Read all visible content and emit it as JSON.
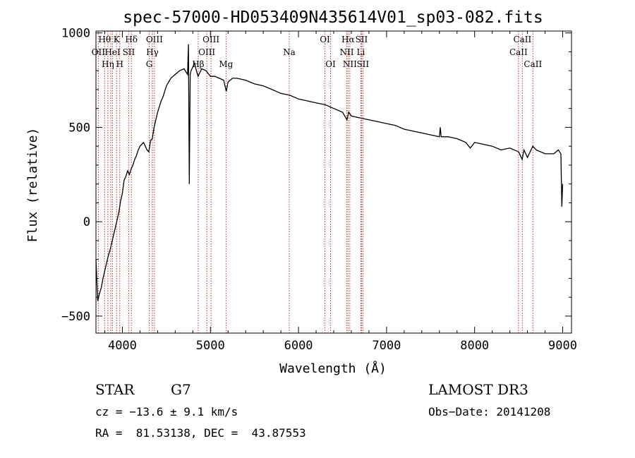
{
  "chart_data": {
    "type": "line",
    "title": "spec-57000-HD053409N435614V01_sp03-082.fits",
    "xlabel": "Wavelength (Å)",
    "ylabel": "Flux (relative)",
    "xlim": [
      3700,
      9100
    ],
    "ylim": [
      -590,
      1010
    ],
    "xticks": [
      4000,
      5000,
      6000,
      7000,
      8000,
      9000
    ],
    "yticks": [
      -500,
      0,
      500,
      1000
    ],
    "grid": false,
    "line_color": "#000000",
    "marker_color": "#c03030",
    "series": [
      {
        "x": [
          3700,
          3720,
          3740,
          3760,
          3780,
          3800,
          3820,
          3840,
          3860,
          3880,
          3900,
          3920,
          3940,
          3960,
          3980,
          4000,
          4020,
          4040,
          4060,
          4080,
          4100,
          4120,
          4140,
          4160,
          4180,
          4200,
          4220,
          4240,
          4260,
          4280,
          4300,
          4320,
          4340,
          4360,
          4380,
          4400,
          4420,
          4440,
          4460,
          4480,
          4500,
          4550,
          4600,
          4650,
          4700,
          4740,
          4750,
          4760,
          4770,
          4780,
          4800,
          4820,
          4840,
          4860,
          4880,
          4900,
          4950,
          5000,
          5050,
          5100,
          5150,
          5180,
          5200,
          5250,
          5300,
          5400,
          5500,
          5600,
          5700,
          5800,
          5900,
          6000,
          6100,
          6200,
          6300,
          6400,
          6500,
          6550,
          6560,
          6570,
          6600,
          6700,
          6800,
          6900,
          7000,
          7100,
          7200,
          7300,
          7400,
          7500,
          7600,
          7610,
          7620,
          7700,
          7800,
          7900,
          7950,
          8000,
          8100,
          8200,
          8300,
          8400,
          8500,
          8540,
          8560,
          8600,
          8660,
          8700,
          8800,
          8900,
          8950,
          8980,
          8990,
          9000
        ],
        "y": [
          -200,
          -420,
          -380,
          -350,
          -300,
          -260,
          -220,
          -180,
          -150,
          -110,
          -70,
          -30,
          10,
          50,
          110,
          150,
          220,
          240,
          270,
          250,
          280,
          300,
          330,
          350,
          380,
          400,
          410,
          420,
          400,
          380,
          370,
          430,
          440,
          500,
          540,
          580,
          610,
          640,
          660,
          690,
          720,
          760,
          780,
          800,
          810,
          780,
          940,
          200,
          780,
          800,
          820,
          840,
          800,
          770,
          790,
          810,
          800,
          770,
          770,
          760,
          750,
          690,
          740,
          760,
          760,
          750,
          730,
          720,
          700,
          680,
          670,
          650,
          640,
          630,
          620,
          600,
          580,
          540,
          560,
          580,
          560,
          550,
          540,
          530,
          520,
          510,
          490,
          480,
          470,
          460,
          450,
          500,
          450,
          450,
          440,
          420,
          390,
          420,
          410,
          400,
          380,
          390,
          370,
          330,
          380,
          340,
          400,
          380,
          360,
          360,
          380,
          360,
          80,
          200
        ]
      }
    ],
    "lines": [
      {
        "wavelength": 3727,
        "label": "OII",
        "row": 1
      },
      {
        "wavelength": 3798,
        "label": "Hθ",
        "row": 0
      },
      {
        "wavelength": 3835,
        "label": "Hη",
        "row": 2
      },
      {
        "wavelength": 3869,
        "label": "",
        "row": 0
      },
      {
        "wavelength": 3889,
        "label": "HeI",
        "row": 1
      },
      {
        "wavelength": 3934,
        "label": "K",
        "row": 0
      },
      {
        "wavelength": 3970,
        "label": "H",
        "row": 2
      },
      {
        "wavelength": 4072,
        "label": "SII",
        "row": 1
      },
      {
        "wavelength": 4102,
        "label": "Hδ",
        "row": 0
      },
      {
        "wavelength": 4305,
        "label": "G",
        "row": 2
      },
      {
        "wavelength": 4341,
        "label": "Hγ",
        "row": 1
      },
      {
        "wavelength": 4364,
        "label": "OIII",
        "row": 0
      },
      {
        "wavelength": 4861,
        "label": "Hβ",
        "row": 2
      },
      {
        "wavelength": 4959,
        "label": "OIII",
        "row": 1
      },
      {
        "wavelength": 5007,
        "label": "OIII",
        "row": 0
      },
      {
        "wavelength": 5177,
        "label": "Mg",
        "row": 2
      },
      {
        "wavelength": 5895,
        "label": "Na",
        "row": 1
      },
      {
        "wavelength": 6300,
        "label": "OI",
        "row": 0
      },
      {
        "wavelength": 6364,
        "label": "OI",
        "row": 2
      },
      {
        "wavelength": 6548,
        "label": "NII",
        "row": 1
      },
      {
        "wavelength": 6563,
        "label": "Hα",
        "row": 0
      },
      {
        "wavelength": 6583,
        "label": "NII",
        "row": 2
      },
      {
        "wavelength": 6708,
        "label": "Li",
        "row": 1
      },
      {
        "wavelength": 6716,
        "label": "SII",
        "row": 0
      },
      {
        "wavelength": 6731,
        "label": "SII",
        "row": 2
      },
      {
        "wavelength": 8498,
        "label": "CaII",
        "row": 1
      },
      {
        "wavelength": 8542,
        "label": "CaII",
        "row": 0
      },
      {
        "wavelength": 8662,
        "label": "CaII",
        "row": 2
      }
    ]
  },
  "info": {
    "obj_class": "STAR",
    "subclass": "G7",
    "survey": "LAMOST DR3",
    "cz": "cz = −13.6 ± 9.1 km/s",
    "obs_date": "Obs−Date: 20141208",
    "coords": "RA =  81.53138, DEC =  43.87553"
  }
}
